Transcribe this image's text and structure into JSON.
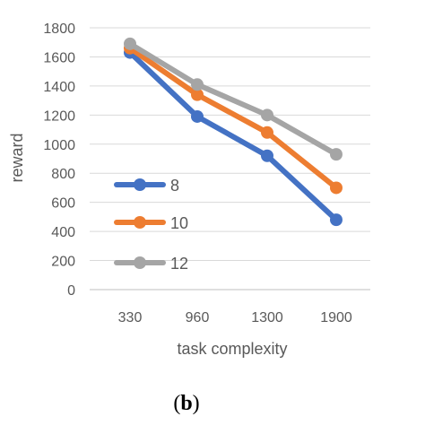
{
  "chart_data": {
    "type": "line",
    "title": "",
    "xlabel": "task complexity",
    "ylabel": "reward",
    "categories": [
      "330",
      "960",
      "1300",
      "1900"
    ],
    "ylim": [
      0,
      1800
    ],
    "yticks": [
      0,
      200,
      400,
      600,
      800,
      1000,
      1200,
      1400,
      1600,
      1800
    ],
    "grid": true,
    "legend_position": "left-center, inside plot",
    "series": [
      {
        "name": "8",
        "values": [
          1630,
          1190,
          920,
          480
        ],
        "color": "#4472C4"
      },
      {
        "name": "10",
        "values": [
          1660,
          1340,
          1080,
          700
        ],
        "color": "#ED7D31"
      },
      {
        "name": "12",
        "values": [
          1690,
          1410,
          1200,
          930
        ],
        "color": "#A5A5A5"
      }
    ]
  },
  "caption": {
    "prefix": "(",
    "label": "b",
    "suffix": ")"
  }
}
